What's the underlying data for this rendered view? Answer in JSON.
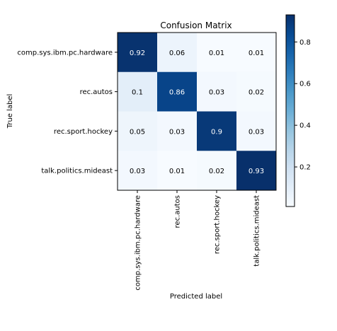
{
  "chart_data": {
    "type": "heatmap",
    "title": "Confusion Matrix",
    "xlabel": "Predicted label",
    "ylabel": "True label",
    "rows": [
      "comp.sys.ibm.pc.hardware",
      "rec.autos",
      "rec.sport.hockey",
      "talk.politics.mideast"
    ],
    "columns": [
      "comp.sys.ibm.pc.hardware",
      "rec.autos",
      "rec.sport.hockey",
      "talk.politics.mideast"
    ],
    "values": [
      [
        0.92,
        0.06,
        0.01,
        0.01
      ],
      [
        0.1,
        0.86,
        0.03,
        0.02
      ],
      [
        0.05,
        0.03,
        0.9,
        0.03
      ],
      [
        0.03,
        0.01,
        0.02,
        0.93
      ]
    ],
    "value_labels": [
      [
        "0.92",
        "0.06",
        "0.01",
        "0.01"
      ],
      [
        "0.1",
        "0.86",
        "0.03",
        "0.02"
      ],
      [
        "0.05",
        "0.03",
        "0.9",
        "0.03"
      ],
      [
        "0.03",
        "0.01",
        "0.02",
        "0.93"
      ]
    ],
    "colorbar": {
      "ticks": [
        0.2,
        0.4,
        0.6,
        0.8
      ],
      "tick_labels": [
        "0.2",
        "0.4",
        "0.6",
        "0.8"
      ],
      "range": [
        0.01,
        0.93
      ]
    },
    "colormap": "Blues",
    "grid": false
  }
}
